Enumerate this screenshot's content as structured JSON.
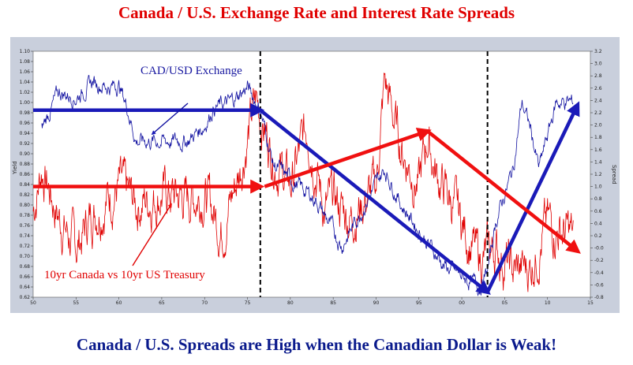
{
  "page": {
    "title": "Canada / U.S. Exchange Rate and Interest Rate Spreads",
    "caption": "Canada / U.S. Spreads are High when the Canadian Dollar is Weak!"
  },
  "colors": {
    "exchange": "#1010a0",
    "spread": "#e00000",
    "arrow_blue": "#1a1ab8",
    "arrow_red": "#f01010",
    "panel": "#c9cfdc"
  },
  "chart_data": {
    "type": "line",
    "title": "Canada / U.S. Exchange Rate and Interest Rate Spreads",
    "xlabel": "",
    "ylabel": "Yield",
    "y2label": "Spread",
    "xlim": [
      1950,
      2015
    ],
    "ylim": [
      0.62,
      1.1
    ],
    "y2lim": [
      -0.8,
      3.2
    ],
    "x_ticks": [
      "50",
      "55",
      "60",
      "65",
      "70",
      "75",
      "80",
      "85",
      "90",
      "95",
      "00",
      "05",
      "10",
      "15"
    ],
    "y_ticks": [
      "0.62",
      "0.64",
      "0.66",
      "0.68",
      "0.70",
      "0.72",
      "0.74",
      "0.76",
      "0.78",
      "0.80",
      "0.82",
      "0.84",
      "0.86",
      "0.88",
      "0.90",
      "0.92",
      "0.94",
      "0.96",
      "0.98",
      "1.00",
      "1.02",
      "1.04",
      "1.06",
      "1.08",
      "1.10"
    ],
    "y2_ticks": [
      "-0.8",
      "-0.6",
      "-0.4",
      "-0.2",
      "-0.0",
      "0.2",
      "0.4",
      "0.6",
      "0.8",
      "1.0",
      "1.2",
      "1.4",
      "1.6",
      "1.8",
      "2.0",
      "2.2",
      "2.4",
      "2.6",
      "2.8",
      "3.0",
      "3.2"
    ],
    "series": [
      {
        "name": "CAD/USD Exchange",
        "axis": "left",
        "x": [
          1951,
          1953,
          1955,
          1957,
          1959,
          1960,
          1961,
          1962,
          1965,
          1968,
          1970,
          1971,
          1973,
          1975,
          1976.5,
          1978,
          1980,
          1983,
          1986,
          1988,
          1991,
          1993,
          1995,
          1998,
          2000,
          2002,
          2003,
          2004,
          2006,
          2007,
          2008,
          2009,
          2011,
          2013
        ],
        "y": [
          0.95,
          1.02,
          1.01,
          1.04,
          1.03,
          1.035,
          0.99,
          0.925,
          0.925,
          0.925,
          0.955,
          0.99,
          1.0,
          1.03,
          0.985,
          0.88,
          0.85,
          0.81,
          0.72,
          0.78,
          0.87,
          0.8,
          0.75,
          0.68,
          0.66,
          0.64,
          0.67,
          0.77,
          0.87,
          1.0,
          0.95,
          0.87,
          1.0,
          1.0
        ]
      },
      {
        "name": "10yr Canada vs 10yr US Treasury",
        "axis": "right",
        "x": [
          1950,
          1951,
          1953,
          1955,
          1957,
          1960,
          1962,
          1965,
          1968,
          1970,
          1972,
          1974,
          1975,
          1976,
          1978,
          1980,
          1982,
          1984,
          1985,
          1987,
          1990,
          1991,
          1993,
          1995,
          1996,
          1997,
          1999,
          2002,
          2004,
          2006,
          2008,
          2010,
          2013
        ],
        "y": [
          0.6,
          1.3,
          0.5,
          0.0,
          0.6,
          1.0,
          0.7,
          0.9,
          0.8,
          0.9,
          0.3,
          1.2,
          1.8,
          2.4,
          1.5,
          1.0,
          2.0,
          0.6,
          0.8,
          0.5,
          1.0,
          2.7,
          1.6,
          1.0,
          1.8,
          1.2,
          0.7,
          -0.2,
          0.0,
          -0.4,
          -0.3,
          0.4,
          0.2
        ]
      }
    ],
    "vlines": [
      1976.5,
      2003
    ],
    "annotations": [
      "CAD/USD Exchange",
      "10yr Canada vs 10yr US Treasury"
    ]
  }
}
